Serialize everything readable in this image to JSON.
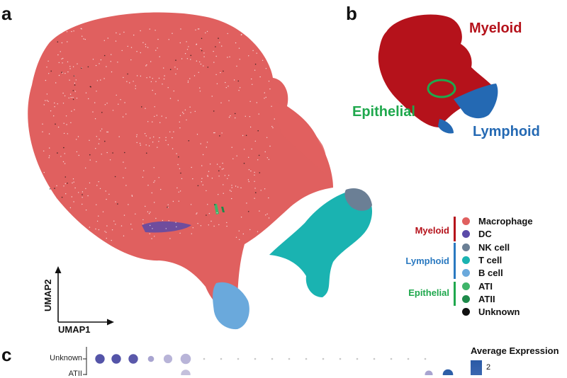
{
  "panels": {
    "a": "a",
    "b": "b",
    "c": "c"
  },
  "umap_axes": {
    "x": "UMAP1",
    "y": "UMAP2"
  },
  "inset": {
    "groups": [
      {
        "label": "Myeloid",
        "color": "#b5121b"
      },
      {
        "label": "Epithelial",
        "color": "#1fa84d"
      },
      {
        "label": "Lymphoid",
        "color": "#2469b3"
      }
    ]
  },
  "legend": {
    "groups": [
      {
        "name": "Myeloid",
        "color": "#b5121b",
        "items": [
          {
            "label": "Macrophage",
            "color": "#e0605f"
          },
          {
            "label": "DC",
            "color": "#5a4aa8"
          }
        ]
      },
      {
        "name": "Lymphoid",
        "color": "#2a79c0",
        "items": [
          {
            "label": "NK cell",
            "color": "#6b7f95"
          },
          {
            "label": "T cell",
            "color": "#1ab3b1"
          },
          {
            "label": "B cell",
            "color": "#6aa9dc"
          }
        ]
      },
      {
        "name": "Epithelial",
        "color": "#1fa84d",
        "items": [
          {
            "label": "ATI",
            "color": "#3fb56a"
          },
          {
            "label": "ATII",
            "color": "#1e8a4a"
          }
        ]
      }
    ],
    "unknown": {
      "label": "Unknown",
      "color": "#111111"
    }
  },
  "chart_data": [
    {
      "type": "scatter",
      "title": "",
      "xlabel": "UMAP1",
      "ylabel": "UMAP2",
      "series": [
        {
          "name": "Macrophage",
          "color": "#e0605f"
        },
        {
          "name": "DC",
          "color": "#5a4aa8"
        },
        {
          "name": "NK cell",
          "color": "#6b7f95"
        },
        {
          "name": "T cell",
          "color": "#1ab3b1"
        },
        {
          "name": "B cell",
          "color": "#6aa9dc"
        },
        {
          "name": "ATI",
          "color": "#3fb56a"
        },
        {
          "name": "ATII",
          "color": "#1e8a4a"
        },
        {
          "name": "Unknown",
          "color": "#111111"
        }
      ]
    },
    {
      "type": "scatter",
      "title": "",
      "series": [
        {
          "name": "Myeloid",
          "color": "#b5121b"
        },
        {
          "name": "Epithelial",
          "color": "#1fa84d"
        },
        {
          "name": "Lymphoid",
          "color": "#2469b3"
        }
      ]
    },
    {
      "type": "scatter",
      "rows": [
        "Unknown",
        "ATII"
      ],
      "legend_title": "Average Expression",
      "legend_ticks": [
        "2"
      ],
      "visible_dots": [
        {
          "row": "Unknown",
          "color": "#5454a8",
          "size": 0.7
        },
        {
          "row": "Unknown",
          "color": "#5454a8",
          "size": 0.7
        },
        {
          "row": "Unknown",
          "color": "#5a58aa",
          "size": 0.7
        },
        {
          "row": "Unknown",
          "color": "#a8a4d0",
          "size": 0.3
        },
        {
          "row": "Unknown",
          "color": "#b8b4d8",
          "size": 0.6
        },
        {
          "row": "Unknown",
          "color": "#b8b4d8",
          "size": 0.8
        },
        {
          "row": "ATII",
          "color": "#c4c0dc",
          "size": 0.7
        },
        {
          "row": "ATII",
          "color": "#a8a4d0",
          "size": 0.5
        },
        {
          "row": "ATII",
          "color": "#2d5fa8",
          "size": 0.8
        }
      ]
    }
  ]
}
